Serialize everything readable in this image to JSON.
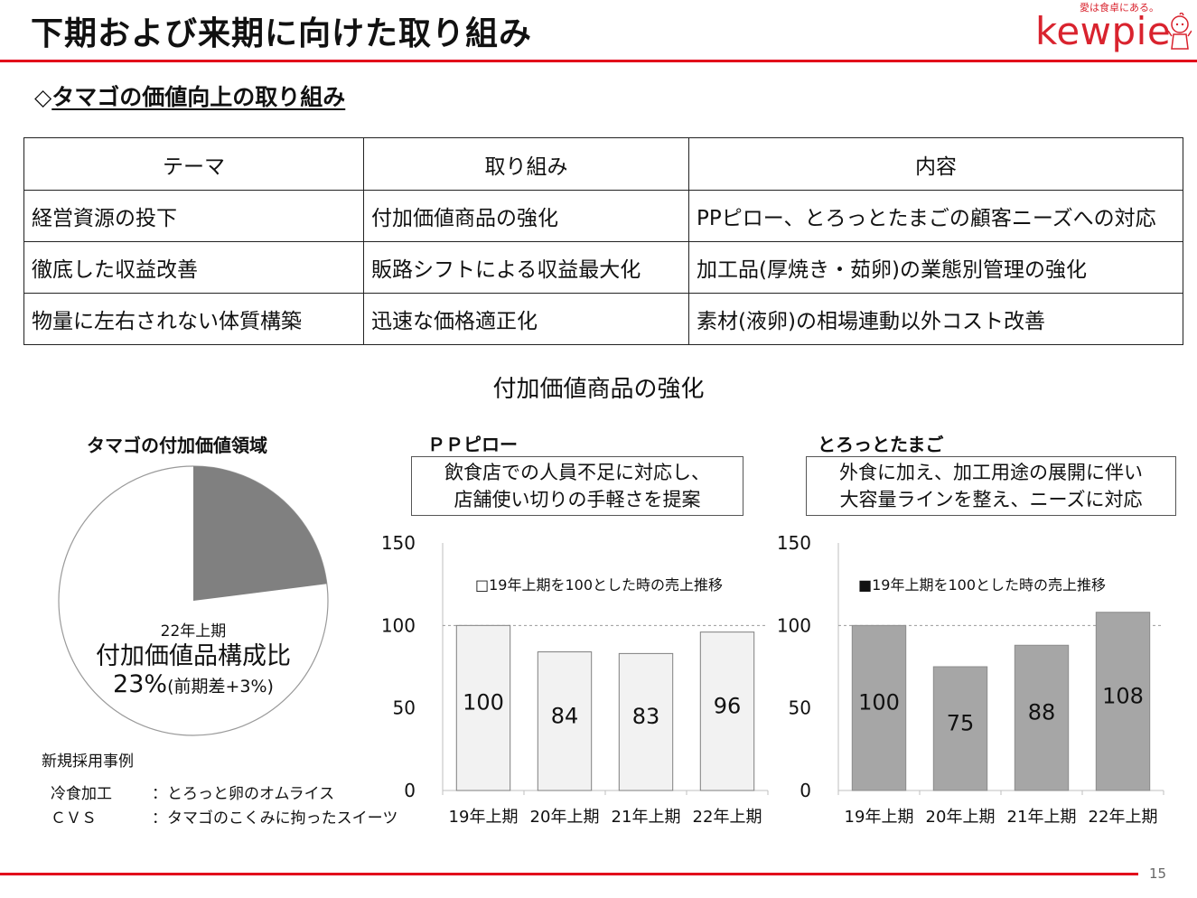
{
  "header": {
    "title": "下期および来期に向けた取り組み",
    "logo_tagline": "愛は食卓にある。",
    "logo_word": "kewpie",
    "accent_color": "#e2001a"
  },
  "section_heading": {
    "marker": "◇",
    "text": "タマゴの価値向上の取り組み"
  },
  "table": {
    "headers": [
      "テーマ",
      "取り組み",
      "内容"
    ],
    "rows": [
      [
        "経営資源の投下",
        "付加価値商品の強化",
        "PPピロー、とろっとたまごの顧客ニーズへの対応"
      ],
      [
        "徹底した収益改善",
        "販路シフトによる収益最大化",
        "加工品(厚焼き・茹卵)の業態別管理の強化"
      ],
      [
        "物量に左右されない体質構築",
        "迅速な価格適正化",
        "素材(液卵)の相場連動以外コスト改善"
      ]
    ]
  },
  "sub_heading": "付加価値商品の強化",
  "pie": {
    "title": "タマゴの付加価値領域",
    "period": "22年上期",
    "label": "付加価値品構成比",
    "value": "23%",
    "value_note": "(前期差+3%)"
  },
  "cases": {
    "title": "新規採用事例",
    "items": [
      {
        "key": "冷食加工",
        "sep": "：",
        "value": "とろっと卵のオムライス"
      },
      {
        "key": "ＣＶＳ",
        "sep": "：",
        "value": "タマゴのこくみに拘ったスイーツ"
      }
    ]
  },
  "chart_data": [
    {
      "type": "bar",
      "title": "ＰＰピロー",
      "description_lines": [
        "飲食店での人員不足に対応し、",
        "店舗使い切りの手軽さを提案"
      ],
      "categories": [
        "19年上期",
        "20年上期",
        "21年上期",
        "22年上期"
      ],
      "series": [
        {
          "name": "19年上期を100とした時の売上推移",
          "values": [
            100,
            84,
            83,
            96
          ]
        }
      ],
      "data_labels": [
        "100",
        "84",
        "83",
        "96"
      ],
      "ylim": [
        0,
        150
      ],
      "yticks": [
        "0",
        "50",
        "100",
        "150"
      ],
      "reference_line": 100,
      "bar_color": "#f2f2f2",
      "legend_marker": "□",
      "legend_position": "top-center"
    },
    {
      "type": "bar",
      "title": "とろっとたまご",
      "description_lines": [
        "外食に加え、加工用途の展開に伴い",
        "大容量ラインを整え、ニーズに対応"
      ],
      "categories": [
        "19年上期",
        "20年上期",
        "21年上期",
        "22年上期"
      ],
      "series": [
        {
          "name": "19年上期を100とした時の売上推移",
          "values": [
            100,
            75,
            88,
            108
          ]
        }
      ],
      "data_labels": [
        "100",
        "75",
        "88",
        "108"
      ],
      "ylim": [
        0,
        150
      ],
      "yticks": [
        "0",
        "50",
        "100",
        "150"
      ],
      "reference_line": 100,
      "bar_color": "#a6a6a6",
      "legend_marker": "■",
      "legend_position": "top-center"
    }
  ],
  "page_number": "15"
}
